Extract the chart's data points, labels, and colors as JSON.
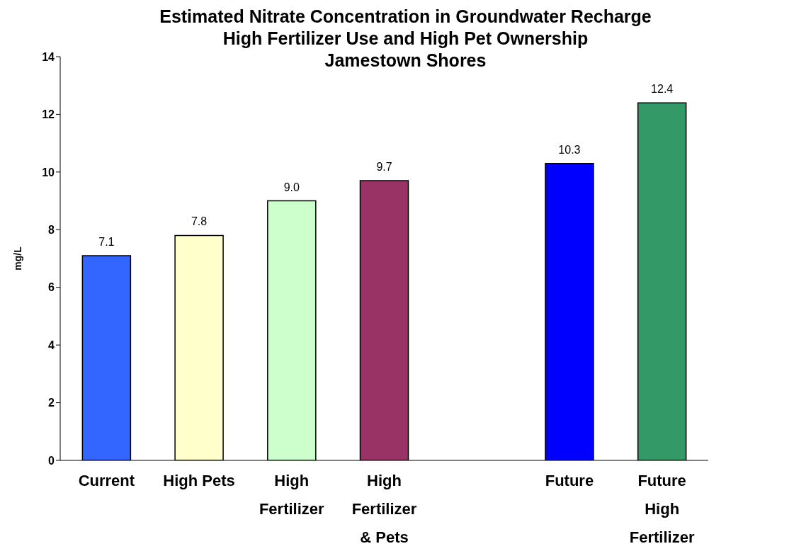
{
  "chart_data": {
    "type": "bar",
    "title": "Estimated Nitrate Concentration in Groundwater Recharge\nHigh Fertilizer Use and High Pet Ownership\nJamestown Shores",
    "ylabel": "mg/L",
    "categories": [
      "Current",
      "High Pets",
      "High Fertilizer",
      "High Fertilizer & Pets",
      null,
      "Future",
      "Future High Fertilizer"
    ],
    "values": [
      7.1,
      7.8,
      9.0,
      9.7,
      null,
      10.3,
      12.4
    ],
    "value_labels": [
      "7.1",
      "7.8",
      "9.0",
      "9.7",
      null,
      "10.3",
      "12.4"
    ],
    "colors": [
      "#3366ff",
      "#ffffcc",
      "#ccffcc",
      "#993366",
      "#ffffff",
      "#0000ff",
      "#339966"
    ],
    "ylim": [
      0,
      14
    ],
    "yticks": [
      0,
      2,
      4,
      6,
      8,
      10,
      12,
      14
    ],
    "grid": false,
    "legend": false
  }
}
